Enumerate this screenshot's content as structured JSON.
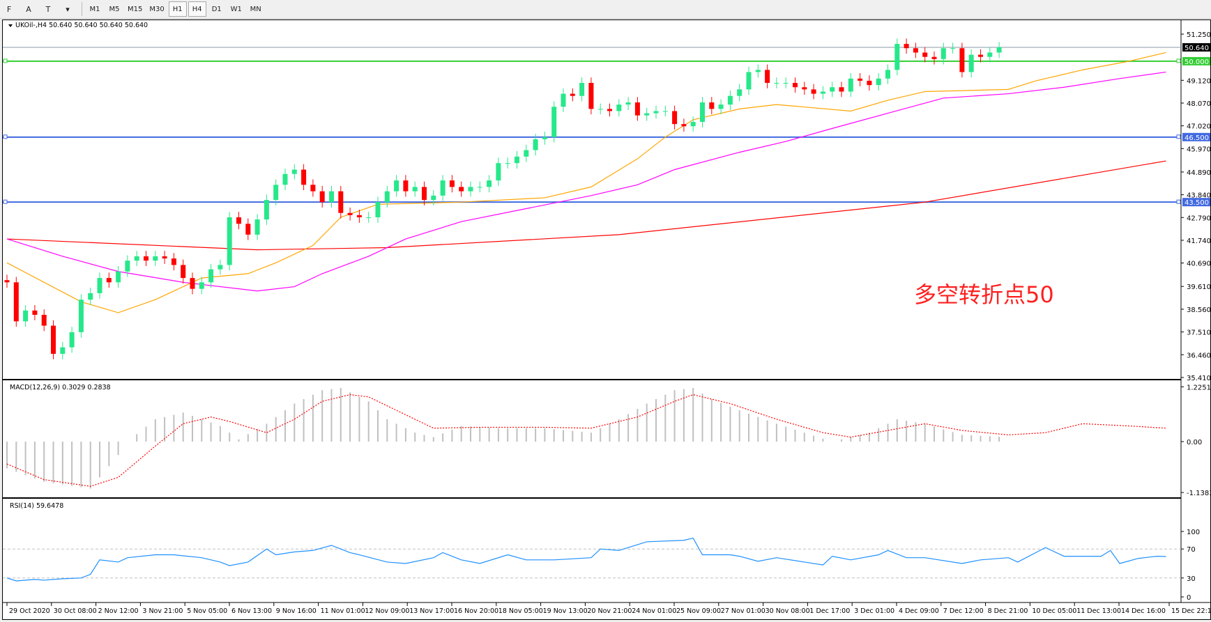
{
  "toolbar": {
    "tools": [
      {
        "name": "crosshair-grid-tool",
        "label": "F"
      },
      {
        "name": "text-tool",
        "label": "A"
      },
      {
        "name": "text-label-tool",
        "label": "T"
      },
      {
        "name": "arrows-tool",
        "label": "▾"
      }
    ],
    "timeframes": [
      "M1",
      "M5",
      "M15",
      "M30",
      "H1",
      "H4",
      "D1",
      "W1",
      "MN"
    ],
    "active_timeframe": "H4"
  },
  "main": {
    "title": "UKOil-,H4  50.640 50.640 50.640 50.640",
    "annotation": "多空转折点50",
    "annotation_color": "#ff2020"
  },
  "macd": {
    "title": "MACD(12,26,9) 0.3029 0.2838",
    "axis": [
      "1.2251",
      "0.00",
      "-1.1383"
    ]
  },
  "rsi": {
    "title": "RSI(14) 59.6478",
    "axis": [
      "100",
      "70",
      "30",
      "0"
    ]
  },
  "price_axis": [
    "51.250",
    "49.120",
    "48.070",
    "47.020",
    "45.970",
    "44.890",
    "43.840",
    "42.790",
    "41.740",
    "40.690",
    "39.610",
    "38.560",
    "37.510",
    "36.460",
    "35.410"
  ],
  "price_markers": [
    {
      "label": "50.640",
      "value": 50.64,
      "color": "#000000",
      "line": "#8a9aa8"
    },
    {
      "label": "50.000",
      "value": 50.0,
      "color": "#32cd32",
      "line": "#32cd32"
    },
    {
      "label": "46.500",
      "value": 46.5,
      "color": "#4169e1",
      "line": "#4169e1"
    },
    {
      "label": "43.500",
      "value": 43.5,
      "color": "#4169e1",
      "line": "#4169e1"
    }
  ],
  "time_axis": [
    "29 Oct 2020",
    "30 Oct 08:00",
    "2 Nov 12:00",
    "3 Nov 21:00",
    "5 Nov 05:00",
    "6 Nov 13:00",
    "9 Nov 16:00",
    "11 Nov 01:00",
    "12 Nov 09:00",
    "13 Nov 17:00",
    "16 Nov 20:00",
    "18 Nov 05:00",
    "19 Nov 13:00",
    "20 Nov 21:00",
    "24 Nov 01:00",
    "25 Nov 09:00",
    "27 Nov 01:00",
    "30 Nov 08:00",
    "1 Dec 17:00",
    "3 Dec 01:00",
    "4 Dec 09:00",
    "7 Dec 12:00",
    "8 Dec 21:00",
    "10 Dec 05:00",
    "11 Dec 13:00",
    "14 Dec 16:00",
    "15 Dec 22:15"
  ],
  "colors": {
    "bull": "#26e88a",
    "bear": "#ff0000",
    "ma_fast": "#ffa500",
    "ma_mid": "#ff00ff",
    "ma_slow": "#ff0000",
    "macd_hist": "#c0c0c0",
    "macd_signal": "#ff0000",
    "rsi": "#1e90ff",
    "levels": "#c0c0c0"
  },
  "chart_data": {
    "type": "candlestick",
    "symbol": "UKOil-",
    "timeframe": "H4",
    "ylim": [
      35.41,
      51.25
    ],
    "closes": [
      39.8,
      38.0,
      38.5,
      38.3,
      37.8,
      36.5,
      36.8,
      37.5,
      39.0,
      39.3,
      40.0,
      39.8,
      40.3,
      40.8,
      41.0,
      40.8,
      41.0,
      40.9,
      40.6,
      40.0,
      39.5,
      39.8,
      40.4,
      40.6,
      42.8,
      42.5,
      42.0,
      42.7,
      43.6,
      44.3,
      44.8,
      45.0,
      44.3,
      44.0,
      43.5,
      44.0,
      43.0,
      42.9,
      42.8,
      42.8,
      43.5,
      44.0,
      44.5,
      44.0,
      44.2,
      43.6,
      43.8,
      44.5,
      44.2,
      44.0,
      44.2,
      44.2,
      44.5,
      45.3,
      45.3,
      45.6,
      45.9,
      46.4,
      46.5,
      47.9,
      48.5,
      48.4,
      49.0,
      47.8,
      47.8,
      47.7,
      48.0,
      48.1,
      47.5,
      47.6,
      47.7,
      47.7,
      47.1,
      47.0,
      47.2,
      48.1,
      47.8,
      48.0,
      48.4,
      48.7,
      49.5,
      49.6,
      49.0,
      49.0,
      49.0,
      48.8,
      48.7,
      48.5,
      48.6,
      48.8,
      48.6,
      49.2,
      49.1,
      48.9,
      49.2,
      49.6,
      50.8,
      50.6,
      50.4,
      50.2,
      50.1,
      50.6,
      50.6,
      49.5,
      50.3,
      50.2,
      50.4,
      50.64
    ],
    "ma_fast": [
      [
        0,
        40.7
      ],
      [
        8,
        38.9
      ],
      [
        12,
        38.4
      ],
      [
        16,
        39.0
      ],
      [
        21,
        40.0
      ],
      [
        26,
        40.2
      ],
      [
        29,
        40.7
      ],
      [
        33,
        41.5
      ],
      [
        36,
        42.8
      ],
      [
        40,
        43.4
      ],
      [
        49,
        43.5
      ],
      [
        58,
        43.7
      ],
      [
        63,
        44.2
      ],
      [
        68,
        45.5
      ],
      [
        71,
        46.5
      ],
      [
        74,
        47.3
      ],
      [
        79,
        47.8
      ],
      [
        83,
        48.0
      ],
      [
        91,
        47.7
      ],
      [
        95,
        48.2
      ],
      [
        99,
        48.6
      ],
      [
        108,
        48.7
      ],
      [
        111,
        49.1
      ],
      [
        116,
        49.6
      ],
      [
        121,
        50.0
      ],
      [
        125,
        50.4
      ]
    ],
    "ma_mid": [
      [
        0,
        41.8
      ],
      [
        6,
        41.0
      ],
      [
        12,
        40.3
      ],
      [
        19,
        39.8
      ],
      [
        27,
        39.4
      ],
      [
        31,
        39.6
      ],
      [
        34,
        40.2
      ],
      [
        39,
        41.0
      ],
      [
        43,
        41.8
      ],
      [
        49,
        42.6
      ],
      [
        56,
        43.2
      ],
      [
        63,
        43.8
      ],
      [
        68,
        44.3
      ],
      [
        72,
        45.0
      ],
      [
        79,
        45.8
      ],
      [
        84,
        46.3
      ],
      [
        89,
        46.9
      ],
      [
        95,
        47.6
      ],
      [
        101,
        48.3
      ],
      [
        108,
        48.5
      ],
      [
        114,
        48.8
      ],
      [
        120,
        49.2
      ],
      [
        125,
        49.5
      ]
    ],
    "ma_slow": [
      [
        0,
        41.8
      ],
      [
        27,
        41.3
      ],
      [
        41,
        41.4
      ],
      [
        66,
        42.0
      ],
      [
        99,
        43.5
      ],
      [
        125,
        45.4
      ]
    ],
    "macd_hist": [
      [
        0,
        -0.6
      ],
      [
        4,
        -0.9
      ],
      [
        9,
        -1.05
      ],
      [
        12,
        -0.3
      ],
      [
        13,
        0
      ],
      [
        16,
        0.5
      ],
      [
        19,
        0.65
      ],
      [
        23,
        0.35
      ],
      [
        25,
        0.05
      ],
      [
        28,
        0.4
      ],
      [
        31,
        0.85
      ],
      [
        34,
        1.15
      ],
      [
        36,
        1.2
      ],
      [
        39,
        0.9
      ],
      [
        41,
        0.5
      ],
      [
        44,
        0.2
      ],
      [
        46,
        0.1
      ],
      [
        49,
        0.35
      ],
      [
        53,
        0.3
      ],
      [
        58,
        0.3
      ],
      [
        63,
        0.2
      ],
      [
        66,
        0.5
      ],
      [
        69,
        0.85
      ],
      [
        72,
        1.15
      ],
      [
        74,
        1.2
      ],
      [
        76,
        0.95
      ],
      [
        79,
        0.7
      ],
      [
        83,
        0.4
      ],
      [
        86,
        0.2
      ],
      [
        89,
        0.0
      ],
      [
        93,
        0.2
      ],
      [
        96,
        0.5
      ],
      [
        99,
        0.4
      ],
      [
        103,
        0.15
      ],
      [
        108,
        0.1
      ],
      [
        111,
        0.2
      ],
      [
        114,
        0.5
      ],
      [
        118,
        0.45
      ],
      [
        121,
        0.4
      ],
      [
        125,
        0.3
      ]
    ],
    "macd_signal": [
      [
        0,
        -0.5
      ],
      [
        4,
        -0.85
      ],
      [
        9,
        -1.0
      ],
      [
        12,
        -0.8
      ],
      [
        16,
        -0.1
      ],
      [
        19,
        0.4
      ],
      [
        22,
        0.55
      ],
      [
        24,
        0.45
      ],
      [
        28,
        0.2
      ],
      [
        31,
        0.5
      ],
      [
        34,
        0.9
      ],
      [
        37,
        1.05
      ],
      [
        39,
        1.0
      ],
      [
        43,
        0.6
      ],
      [
        46,
        0.3
      ],
      [
        51,
        0.32
      ],
      [
        58,
        0.32
      ],
      [
        63,
        0.3
      ],
      [
        68,
        0.55
      ],
      [
        72,
        0.9
      ],
      [
        74,
        1.05
      ],
      [
        78,
        0.85
      ],
      [
        83,
        0.5
      ],
      [
        88,
        0.2
      ],
      [
        91,
        0.1
      ],
      [
        95,
        0.25
      ],
      [
        99,
        0.4
      ],
      [
        103,
        0.25
      ],
      [
        108,
        0.15
      ],
      [
        112,
        0.2
      ],
      [
        116,
        0.4
      ],
      [
        121,
        0.35
      ],
      [
        125,
        0.3
      ]
    ],
    "macd_ylim": [
      -1.1383,
      1.2251
    ],
    "rsi": [
      [
        0,
        30
      ],
      [
        1,
        26
      ],
      [
        3,
        28
      ],
      [
        4,
        27
      ],
      [
        6,
        29
      ],
      [
        8,
        30
      ],
      [
        9,
        35
      ],
      [
        10,
        55
      ],
      [
        12,
        52
      ],
      [
        13,
        58
      ],
      [
        16,
        62
      ],
      [
        18,
        62
      ],
      [
        21,
        58
      ],
      [
        23,
        52
      ],
      [
        24,
        47
      ],
      [
        26,
        52
      ],
      [
        28,
        70
      ],
      [
        29,
        62
      ],
      [
        31,
        66
      ],
      [
        33,
        68
      ],
      [
        35,
        75
      ],
      [
        37,
        65
      ],
      [
        38,
        62
      ],
      [
        41,
        52
      ],
      [
        43,
        50
      ],
      [
        46,
        58
      ],
      [
        47,
        65
      ],
      [
        49,
        55
      ],
      [
        51,
        50
      ],
      [
        54,
        62
      ],
      [
        56,
        55
      ],
      [
        59,
        55
      ],
      [
        63,
        58
      ],
      [
        64,
        70
      ],
      [
        66,
        68
      ],
      [
        69,
        80
      ],
      [
        73,
        82
      ],
      [
        74,
        85
      ],
      [
        75,
        62
      ],
      [
        78,
        62
      ],
      [
        79,
        60
      ],
      [
        81,
        53
      ],
      [
        83,
        58
      ],
      [
        86,
        52
      ],
      [
        88,
        48
      ],
      [
        89,
        60
      ],
      [
        91,
        55
      ],
      [
        94,
        62
      ],
      [
        95,
        68
      ],
      [
        97,
        58
      ],
      [
        99,
        58
      ],
      [
        103,
        50
      ],
      [
        105,
        55
      ],
      [
        108,
        58
      ],
      [
        109,
        52
      ],
      [
        112,
        72
      ],
      [
        114,
        60
      ],
      [
        118,
        60
      ],
      [
        119,
        68
      ],
      [
        120,
        50
      ],
      [
        122,
        57
      ],
      [
        124,
        60
      ],
      [
        125,
        59.6
      ]
    ],
    "rsi_levels": [
      70,
      30
    ],
    "rsi_ylim": [
      0,
      100
    ]
  }
}
